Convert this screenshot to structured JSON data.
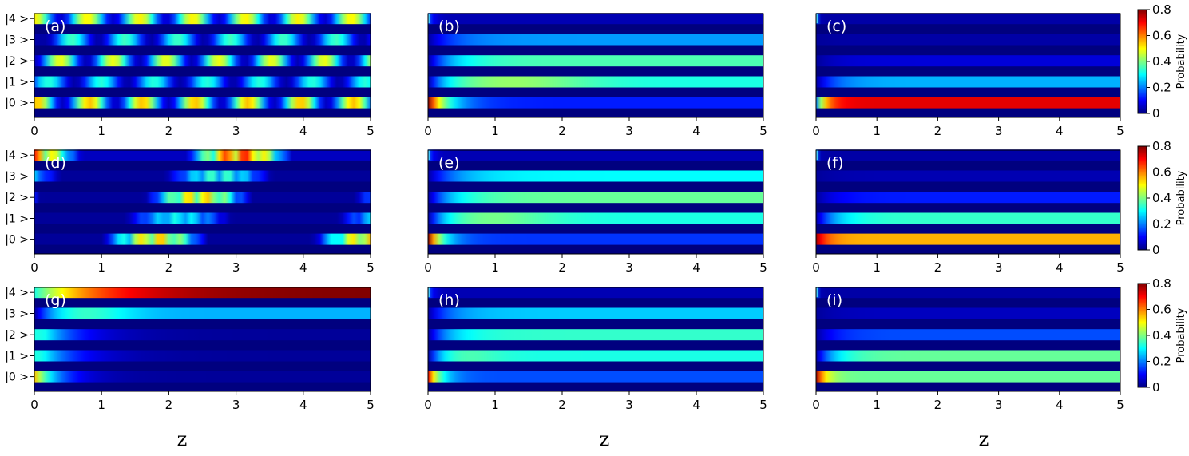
{
  "chart_data": {
    "type": "heatmap",
    "colormap": "jet",
    "xlim": [
      0,
      5
    ],
    "x_ticks": [
      "0",
      "1",
      "2",
      "3",
      "4",
      "5"
    ],
    "state_labels": [
      "|4 >",
      "|3 >",
      "|2 >",
      "|1 >",
      "|0 >"
    ],
    "xlabels": [
      "z",
      "z",
      "z"
    ],
    "colorbar": {
      "label": "Probability",
      "ticks": [
        "0",
        "0.2",
        "0.4",
        "0.6",
        "0.8"
      ],
      "range": [
        0,
        0.8
      ]
    },
    "panels": [
      {
        "label": "(a)",
        "states": {
          "s4": {
            "kind": "osc",
            "amp": 0.45,
            "omega": 4.0,
            "phase": 0.0,
            "power": 2,
            "base": 0.06,
            "start": 0
          },
          "s3": {
            "kind": "osc",
            "amp": 0.32,
            "omega": 4.0,
            "phase": 0.9,
            "power": 2,
            "base": 0.03,
            "start": 0.2
          },
          "s2": {
            "kind": "osc",
            "amp": 0.45,
            "omega": 4.0,
            "phase": 1.6,
            "power": 2,
            "base": 0.04,
            "start": 0
          },
          "s1": {
            "kind": "osc",
            "amp": 0.3,
            "omega": 4.0,
            "phase": 2.3,
            "power": 2,
            "base": 0.03,
            "start": 0
          },
          "s0": {
            "kind": "osc",
            "amp": 0.5,
            "omega": 4.0,
            "phase": 3.0,
            "power": 2,
            "base": 0.05,
            "start": 0
          }
        }
      },
      {
        "label": "(b)",
        "states": {
          "s4": {
            "kind": "steady",
            "init": 0.18,
            "final": 0.04,
            "tau": 0.08
          },
          "s3": {
            "kind": "steady",
            "init": 0.02,
            "final": 0.22,
            "tau": 0.35
          },
          "s2": {
            "kind": "steady",
            "init": 0.02,
            "final": 0.36,
            "tau": 0.35
          },
          "s1": {
            "kind": "steady",
            "init": 0.02,
            "final": 0.32,
            "tau": 0.25,
            "peak": 0.42,
            "peakAt": 1.2,
            "peakW": 1.2
          },
          "s0": {
            "kind": "steady",
            "init": 0.8,
            "final": 0.12,
            "tau": 0.28
          }
        }
      },
      {
        "label": "(c)",
        "states": {
          "s4": {
            "kind": "steady",
            "init": 0.18,
            "final": 0.03,
            "tau": 0.03
          },
          "s3": {
            "kind": "steady",
            "init": 0.02,
            "final": 0.03,
            "tau": 0.3
          },
          "s2": {
            "kind": "steady",
            "init": 0.02,
            "final": 0.07,
            "tau": 0.3
          },
          "s1": {
            "kind": "steady",
            "init": 0.02,
            "final": 0.24,
            "tau": 0.3
          },
          "s0": {
            "kind": "steady",
            "init": 0.2,
            "final": 0.72,
            "tau": 0.15
          }
        }
      },
      {
        "label": "(d)",
        "states": {
          "s4": {
            "kind": "osc",
            "amp": 0.65,
            "omega": 2.0,
            "phase": 0.2,
            "power": 1,
            "base": 0.05,
            "start": 0,
            "mod": 10
          },
          "s3": {
            "kind": "osc",
            "amp": 0.35,
            "omega": 2.0,
            "phase": 0.8,
            "power": 1,
            "base": 0.02,
            "start": 0,
            "mod": 12
          },
          "s2": {
            "kind": "osc",
            "amp": 0.55,
            "omega": 2.0,
            "phase": 1.4,
            "power": 1,
            "base": 0.02,
            "start": 0,
            "mod": 11
          },
          "s1": {
            "kind": "osc",
            "amp": 0.3,
            "omega": 2.0,
            "phase": 2.0,
            "power": 1,
            "base": 0.02,
            "start": 0,
            "mod": 12
          },
          "s0": {
            "kind": "osc",
            "amp": 0.55,
            "omega": 2.0,
            "phase": 2.7,
            "power": 1,
            "base": 0.02,
            "start": 0,
            "mod": 10
          }
        }
      },
      {
        "label": "(e)",
        "states": {
          "s4": {
            "kind": "steady",
            "init": 0.18,
            "final": 0.04,
            "tau": 0.08
          },
          "s3": {
            "kind": "steady",
            "init": 0.02,
            "final": 0.3,
            "tau": 0.4
          },
          "s2": {
            "kind": "steady",
            "init": 0.02,
            "final": 0.38,
            "tau": 0.35
          },
          "s1": {
            "kind": "steady",
            "init": 0.02,
            "final": 0.32,
            "tau": 0.25,
            "peak": 0.4,
            "peakAt": 0.8,
            "peakW": 1.0
          },
          "s0": {
            "kind": "steady",
            "init": 0.8,
            "final": 0.14,
            "tau": 0.2
          }
        }
      },
      {
        "label": "(f)",
        "states": {
          "s4": {
            "kind": "steady",
            "init": 0.18,
            "final": 0.03,
            "tau": 0.03
          },
          "s3": {
            "kind": "steady",
            "init": 0.02,
            "final": 0.04,
            "tau": 0.3
          },
          "s2": {
            "kind": "steady",
            "init": 0.02,
            "final": 0.12,
            "tau": 0.3
          },
          "s1": {
            "kind": "steady",
            "init": 0.02,
            "final": 0.34,
            "tau": 0.3
          },
          "s0": {
            "kind": "steady",
            "init": 0.78,
            "final": 0.56,
            "tau": 0.18
          }
        }
      },
      {
        "label": "(g)",
        "states": {
          "s4": {
            "kind": "steady",
            "init": 0.32,
            "final": 0.8,
            "tau": 0.9
          },
          "s3": {
            "kind": "steady",
            "init": 0.02,
            "final": 0.24,
            "tau": 0.4,
            "peak": 0.38,
            "peakAt": 0.6,
            "peakW": 0.8
          },
          "s2": {
            "kind": "pulse",
            "peak": 0.32,
            "peakAt": 0.15,
            "decay": 0.5,
            "final": 0.02
          },
          "s1": {
            "kind": "pulse",
            "peak": 0.32,
            "peakAt": 0.12,
            "decay": 0.5,
            "final": 0.02
          },
          "s0": {
            "kind": "pulse",
            "peak": 0.55,
            "peakAt": 0.0,
            "decay": 0.35,
            "final": 0.02
          }
        }
      },
      {
        "label": "(h)",
        "states": {
          "s4": {
            "kind": "steady",
            "init": 0.18,
            "final": 0.04,
            "tau": 0.08
          },
          "s3": {
            "kind": "steady",
            "init": 0.02,
            "final": 0.26,
            "tau": 0.3
          },
          "s2": {
            "kind": "steady",
            "init": 0.02,
            "final": 0.34,
            "tau": 0.3
          },
          "s1": {
            "kind": "steady",
            "init": 0.02,
            "final": 0.32,
            "tau": 0.2,
            "peak": 0.38,
            "peakAt": 0.4,
            "peakW": 0.6
          },
          "s0": {
            "kind": "steady",
            "init": 0.72,
            "final": 0.16,
            "tau": 0.18
          }
        }
      },
      {
        "label": "(i)",
        "states": {
          "s4": {
            "kind": "steady",
            "init": 0.18,
            "final": 0.03,
            "tau": 0.03
          },
          "s3": {
            "kind": "steady",
            "init": 0.02,
            "final": 0.05,
            "tau": 0.3
          },
          "s2": {
            "kind": "steady",
            "init": 0.02,
            "final": 0.16,
            "tau": 0.3
          },
          "s1": {
            "kind": "steady",
            "init": 0.02,
            "final": 0.38,
            "tau": 0.3
          },
          "s0": {
            "kind": "steady",
            "init": 0.78,
            "final": 0.38,
            "tau": 0.15
          }
        }
      }
    ]
  }
}
